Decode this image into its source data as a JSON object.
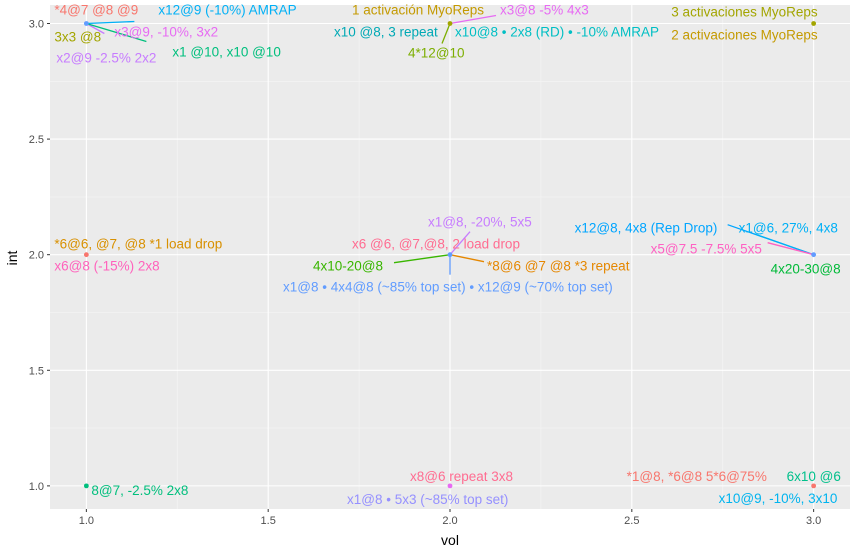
{
  "colors": {
    "panel_bg": "#EBEBEB",
    "grid_major": "#FFFFFF",
    "grid_minor": "#F5F5F5"
  },
  "chart_data": {
    "type": "scatter",
    "title": "",
    "xlabel": "vol",
    "ylabel": "int",
    "xlim": [
      0.9,
      3.1
    ],
    "ylim": [
      0.9,
      3.08
    ],
    "x_ticks": [
      1.0,
      1.5,
      2.0,
      2.5,
      3.0
    ],
    "x_tick_labels": [
      "1.0",
      "1.5",
      "2.0",
      "2.5",
      "3.0"
    ],
    "y_ticks": [
      1.0,
      1.5,
      2.0,
      2.5,
      3.0
    ],
    "y_tick_labels": [
      "1.0",
      "1.5",
      "2.0",
      "2.5",
      "3.0"
    ],
    "grid": true,
    "legend": "none",
    "points": [
      {
        "x": 1,
        "y": 3,
        "color": "#619CFF"
      },
      {
        "x": 2,
        "y": 3,
        "color": "#A3A500"
      },
      {
        "x": 3,
        "y": 3,
        "color": "#A3A500"
      },
      {
        "x": 1,
        "y": 2,
        "color": "#F8766D"
      },
      {
        "x": 2,
        "y": 2,
        "color": "#619CFF"
      },
      {
        "x": 3,
        "y": 2,
        "color": "#619CFF"
      },
      {
        "x": 1,
        "y": 1,
        "color": "#00BF7D"
      },
      {
        "x": 2,
        "y": 1,
        "color": "#E76BF3"
      },
      {
        "x": 3,
        "y": 1,
        "color": "#F8766D"
      }
    ],
    "labels": [
      {
        "x": 1,
        "y": 3,
        "text": "*4@7 @8 @9",
        "color": "#F8766D"
      },
      {
        "x": 1,
        "y": 3,
        "text": "x12@9 (-10%) AMRAP",
        "color": "#00B0F6"
      },
      {
        "x": 1,
        "y": 3,
        "text": "3x3 @8",
        "color": "#A3A500"
      },
      {
        "x": 1,
        "y": 3,
        "text": "x3@9, -10%, 3x2",
        "color": "#E76BF3"
      },
      {
        "x": 1,
        "y": 3,
        "text": "x2@9 -2.5% 2x2",
        "color": "#C77CFF"
      },
      {
        "x": 1,
        "y": 3,
        "text": "x1 @10, x10 @10",
        "color": "#00BF7D"
      },
      {
        "x": 2,
        "y": 3,
        "text": "1 activación MyoReps",
        "color": "#C49A00"
      },
      {
        "x": 2,
        "y": 3,
        "text": "x3@8 -5% 4x3",
        "color": "#E76BF3"
      },
      {
        "x": 2,
        "y": 3,
        "text": "x10 @8, 3 repeat",
        "color": "#00A9B5"
      },
      {
        "x": 2,
        "y": 3,
        "text": "x10@8 •  2x8 (RD) • -10% AMRAP",
        "color": "#00BFC4"
      },
      {
        "x": 2,
        "y": 3,
        "text": "4*12@10",
        "color": "#7CAE00"
      },
      {
        "x": 3,
        "y": 3,
        "text": "3 activaciones MyoReps",
        "color": "#A3A500"
      },
      {
        "x": 3,
        "y": 3,
        "text": "2 activaciones MyoReps",
        "color": "#C49A00"
      },
      {
        "x": 1,
        "y": 2,
        "text": "*6@6, @7, @8 *1 load drop",
        "color": "#D89000"
      },
      {
        "x": 1,
        "y": 2,
        "text": "x6@8 (-15%) 2x8",
        "color": "#FF62BC"
      },
      {
        "x": 2,
        "y": 2,
        "text": "x1@8, -20%, 5x5",
        "color": "#C77CFF"
      },
      {
        "x": 2,
        "y": 2,
        "text": "x6 @6, @7,@8, 2 load drop",
        "color": "#FF6C91"
      },
      {
        "x": 2,
        "y": 2,
        "text": "4x10-20@8",
        "color": "#39B600"
      },
      {
        "x": 2,
        "y": 2,
        "text": "*8@6 @7 @8 *3 repeat",
        "color": "#E58700"
      },
      {
        "x": 2,
        "y": 2,
        "text": "x1@8 • 4x4@8 (~85% top set) • x12@9 (~70% top set)",
        "color": "#619CFF"
      },
      {
        "x": 3,
        "y": 2,
        "text": "x12@8, 4x8 (Rep Drop)",
        "color": "#00A5FF"
      },
      {
        "x": 3,
        "y": 2,
        "text": "x1@6, 27%, 4x8",
        "color": "#00B0F6"
      },
      {
        "x": 3,
        "y": 2,
        "text": "x5@7.5 -7.5% 5x5",
        "color": "#FF61C3"
      },
      {
        "x": 3,
        "y": 2,
        "text": "4x20-30@8",
        "color": "#00BA38"
      },
      {
        "x": 1,
        "y": 1,
        "text": "8@7, -2.5% 2x8",
        "color": "#00BF7D"
      },
      {
        "x": 2,
        "y": 1,
        "text": "x8@6 repeat 3x8",
        "color": "#FF6C91"
      },
      {
        "x": 2,
        "y": 1,
        "text": "x1@8 • 5x3 (~85% top set)",
        "color": "#9590FF"
      },
      {
        "x": 3,
        "y": 1,
        "text": "*1@8, *6@8 5*6@75%",
        "color": "#F8766D"
      },
      {
        "x": 3,
        "y": 1,
        "text": "6x10 @6",
        "color": "#00C08B"
      },
      {
        "x": 3,
        "y": 1,
        "text": "x10@9, -10%, 3x10",
        "color": "#00B4EF"
      }
    ]
  }
}
